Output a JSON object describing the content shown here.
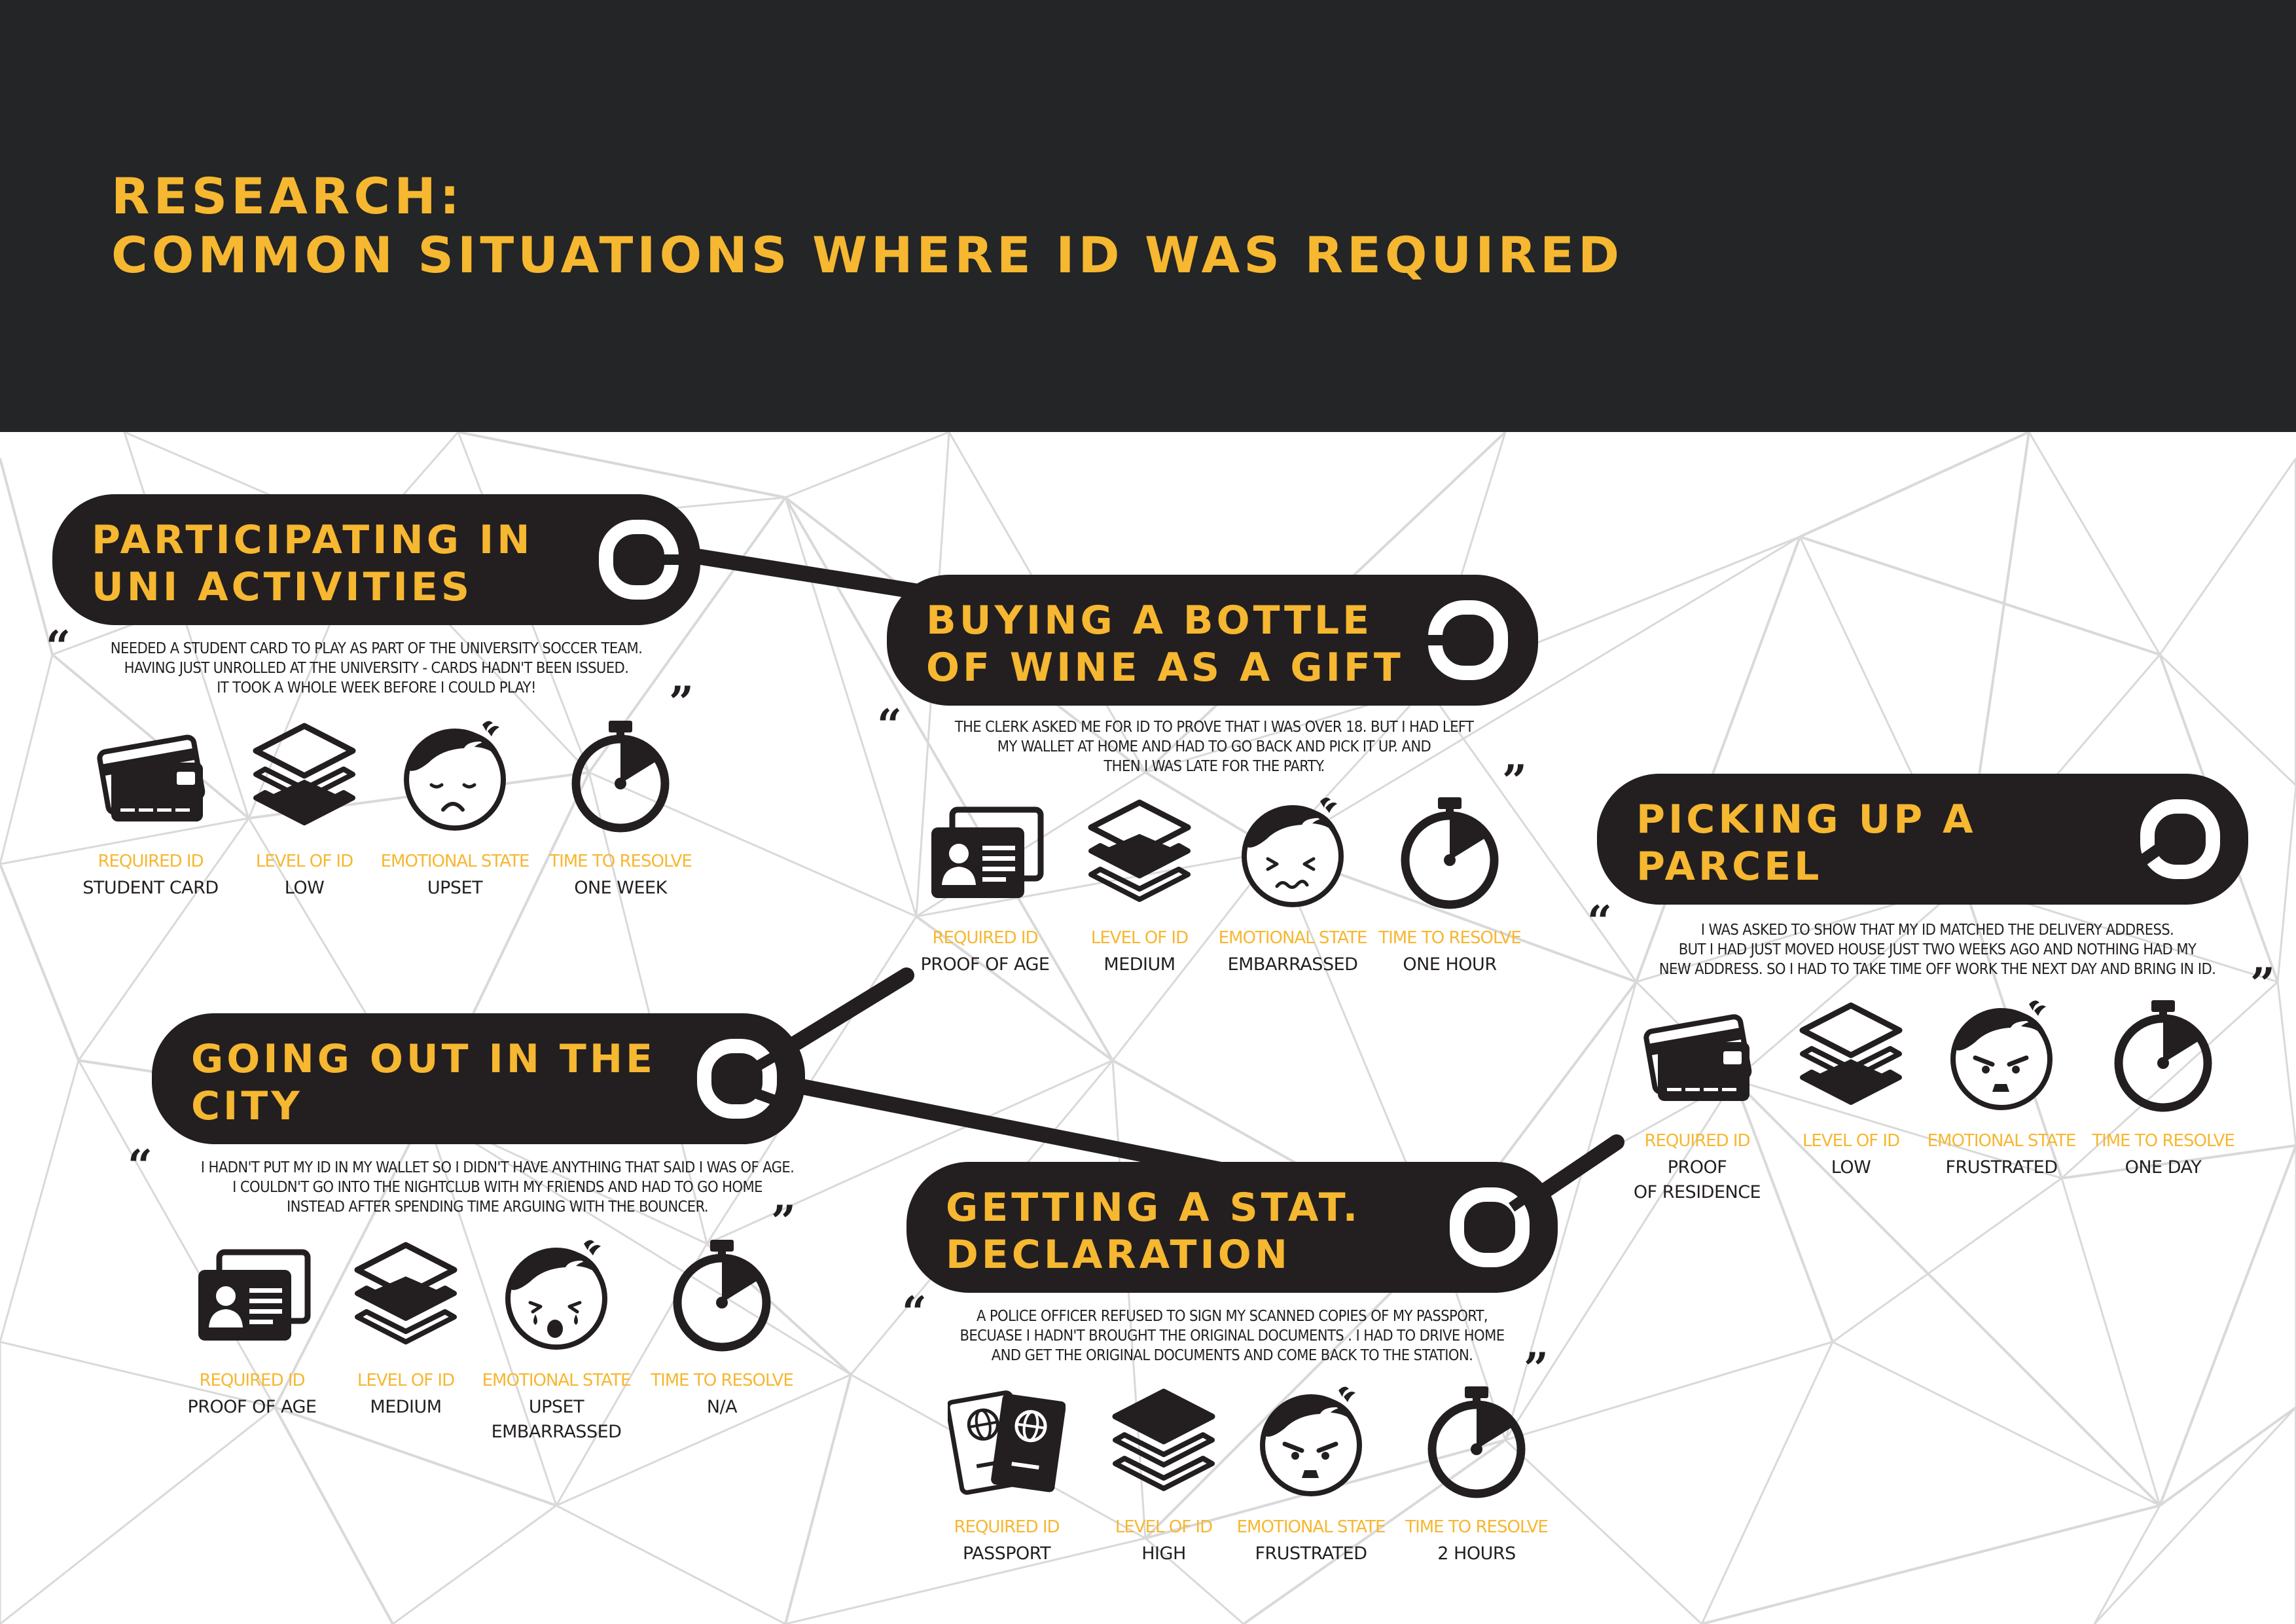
{
  "page": {
    "title_lines": [
      "RESEARCH:",
      "COMMON SITUATIONS WHERE ID WAS REQUIRED"
    ]
  },
  "colors": {
    "dark": "#231f20",
    "header": "#232526",
    "accent": "#f6b731",
    "lines": "#d9d9d9"
  },
  "labels": {
    "required_id": "REQUIRED ID",
    "level_of_id": "LEVEL OF ID",
    "emotional_state": "EMOTIONAL STATE",
    "time_to_resolve": "TIME TO RESOLVE"
  },
  "scenarios": [
    {
      "title_lines": [
        "PARTICIPATING IN",
        "UNI ACTIVITIES"
      ],
      "quote_lines": [
        "NEEDED A STUDENT CARD TO PLAY AS PART OF THE UNIVERSITY SOCCER TEAM.",
        "HAVING JUST UNROLLED AT THE UNIVERSITY - CARDS HADN'T BEEN ISSUED.",
        "IT TOOK A WHOLE WEEK BEFORE I COULD PLAY!"
      ],
      "required_id": [
        "STUDENT CARD"
      ],
      "required_icon": "credit-card-icon",
      "level": [
        "LOW"
      ],
      "level_icon": "layers-low-icon",
      "emotion": [
        "UPSET"
      ],
      "emotion_icon": "upset-face-icon",
      "time": [
        "ONE WEEK"
      ],
      "time_icon": "stopwatch-icon"
    },
    {
      "title_lines": [
        "BUYING A BOTTLE",
        "OF WINE AS A GIFT"
      ],
      "quote_lines": [
        "THE CLERK ASKED ME FOR ID TO PROVE THAT I WAS OVER 18. BUT I HAD LEFT",
        "MY WALLET AT HOME AND HAD TO GO BACK AND PICK IT UP. AND",
        "THEN I WAS LATE FOR THE PARTY."
      ],
      "required_id": [
        "PROOF OF AGE"
      ],
      "required_icon": "id-card-icon",
      "level": [
        "MEDIUM"
      ],
      "level_icon": "layers-medium-icon",
      "emotion": [
        "EMBARRASSED"
      ],
      "emotion_icon": "embarrassed-face-icon",
      "time": [
        "ONE HOUR"
      ],
      "time_icon": "stopwatch-icon"
    },
    {
      "title_lines": [
        "PICKING UP A",
        "PARCEL"
      ],
      "quote_lines": [
        "I WAS ASKED TO SHOW THAT MY ID MATCHED THE DELIVERY ADDRESS.",
        "BUT I HAD JUST MOVED HOUSE JUST TWO WEEKS AGO AND NOTHING HAD MY",
        "NEW ADDRESS.  SO I HAD TO TAKE TIME OFF WORK THE NEXT DAY AND BRING IN ID."
      ],
      "required_id": [
        "PROOF",
        "OF RESIDENCE"
      ],
      "required_icon": "credit-card-icon",
      "level": [
        "LOW"
      ],
      "level_icon": "layers-low-icon",
      "emotion": [
        "FRUSTRATED"
      ],
      "emotion_icon": "frustrated-face-icon",
      "time": [
        "ONE DAY"
      ],
      "time_icon": "stopwatch-icon"
    },
    {
      "title_lines": [
        "GOING OUT IN THE",
        "CITY"
      ],
      "quote_lines": [
        "I HADN'T PUT MY ID IN MY WALLET SO I DIDN'T HAVE ANYTHING THAT SAID I WAS OF AGE.",
        "I COULDN'T GO INTO THE NIGHTCLUB WITH MY FRIENDS AND HAD TO GO HOME",
        "INSTEAD AFTER SPENDING TIME ARGUING WITH THE BOUNCER."
      ],
      "required_id": [
        "PROOF OF AGE"
      ],
      "required_icon": "id-card-icon",
      "level": [
        "MEDIUM"
      ],
      "level_icon": "layers-medium-icon",
      "emotion": [
        "UPSET",
        "EMBARRASSED"
      ],
      "emotion_icon": "crying-face-icon",
      "time": [
        "N/A"
      ],
      "time_icon": "stopwatch-icon"
    },
    {
      "title_lines": [
        "GETTING A STAT.",
        "DECLARATION"
      ],
      "quote_lines": [
        "A POLICE OFFICER REFUSED TO SIGN MY SCANNED COPIES OF MY PASSPORT,",
        "BECUASE I HADN'T BROUGHT THE ORIGINAL DOCUMENTS .  I HAD TO DRIVE HOME",
        "AND GET THE ORIGINAL DOCUMENTS AND COME BACK TO THE STATION."
      ],
      "required_id": [
        "PASSPORT"
      ],
      "required_icon": "passport-icon",
      "level": [
        "HIGH"
      ],
      "level_icon": "layers-high-icon",
      "emotion": [
        "FRUSTRATED"
      ],
      "emotion_icon": "frustrated-face-icon",
      "time": [
        "2 HOURS"
      ],
      "time_icon": "stopwatch-icon"
    }
  ]
}
